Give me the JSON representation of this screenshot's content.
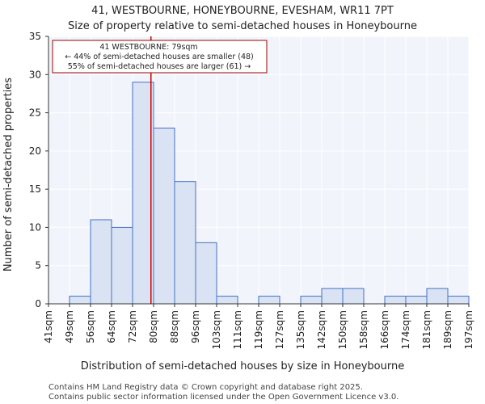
{
  "chart_data": {
    "type": "bar",
    "title": "41, WESTBOURNE, HONEYBOURNE, EVESHAM, WR11 7PT",
    "subtitle": "Size of property relative to semi-detached houses in Honeybourne",
    "xlabel": "Distribution of semi-detached houses by size in Honeybourne",
    "ylabel": "Number of semi-detached properties",
    "bin_edges": [
      41,
      49,
      56,
      64,
      72,
      80,
      88,
      96,
      103,
      111,
      119,
      127,
      135,
      142,
      150,
      158,
      166,
      174,
      181,
      189,
      197
    ],
    "x_tick_labels": [
      "41sqm",
      "49sqm",
      "56sqm",
      "64sqm",
      "72sqm",
      "80sqm",
      "88sqm",
      "96sqm",
      "103sqm",
      "111sqm",
      "119sqm",
      "127sqm",
      "135sqm",
      "142sqm",
      "150sqm",
      "158sqm",
      "166sqm",
      "174sqm",
      "181sqm",
      "189sqm",
      "197sqm"
    ],
    "values": [
      0,
      1,
      11,
      10,
      29,
      23,
      16,
      8,
      1,
      0,
      1,
      0,
      1,
      2,
      2,
      0,
      1,
      1,
      2,
      1
    ],
    "ylim": [
      0,
      35
    ],
    "y_ticks": [
      0,
      5,
      10,
      15,
      20,
      25,
      30,
      35
    ],
    "grid": true,
    "bar_fill": "#dae3f3",
    "bar_stroke": "#4472c4",
    "marker": {
      "value": 79,
      "color": "#cc0000",
      "annotation_lines": [
        "41 WESTBOURNE: 79sqm",
        "← 44% of semi-detached houses are smaller (48)",
        "55% of semi-detached houses are larger (61) →"
      ]
    }
  },
  "footer": {
    "line1": "Contains HM Land Registry data © Crown copyright and database right 2025.",
    "line2": "Contains public sector information licensed under the Open Government Licence v3.0."
  }
}
